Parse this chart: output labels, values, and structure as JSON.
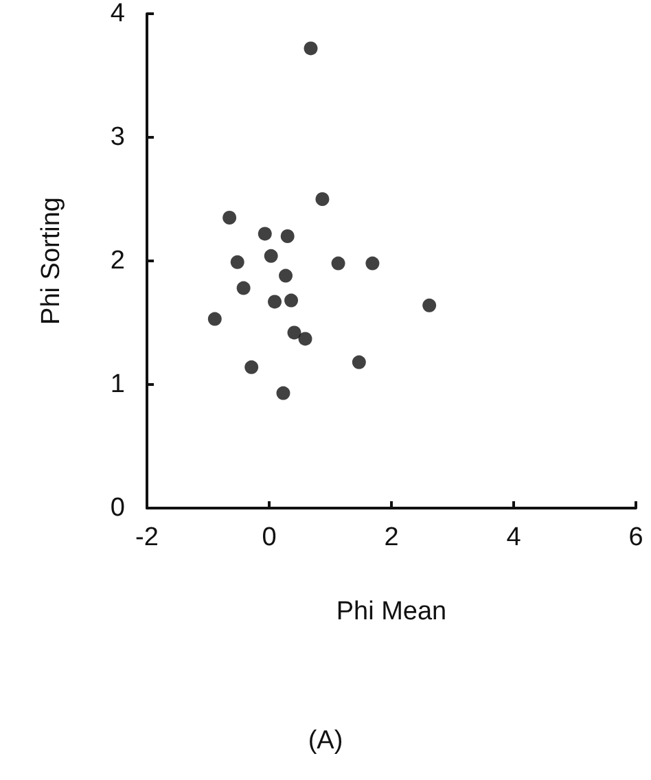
{
  "chart_data": {
    "type": "scatter",
    "xlabel": "Phi Mean",
    "ylabel": "Phi Sorting",
    "annotations": [
      "(A)"
    ],
    "x": [
      0.68,
      0.87,
      -0.65,
      -0.07,
      0.3,
      0.03,
      -0.52,
      1.13,
      1.69,
      0.27,
      -0.42,
      0.09,
      0.36,
      2.62,
      -0.89,
      0.41,
      0.59,
      -0.29,
      1.47,
      0.23
    ],
    "values": [
      3.72,
      2.5,
      2.35,
      2.22,
      2.2,
      2.04,
      1.99,
      1.98,
      1.98,
      1.88,
      1.78,
      1.67,
      1.68,
      1.64,
      1.53,
      1.42,
      1.37,
      1.14,
      1.18,
      0.93
    ],
    "color": "#111111",
    "marker": "circle",
    "xlim": [
      -2,
      6
    ],
    "xticks": [
      -2,
      0,
      2,
      4,
      6
    ],
    "ylim": [
      0,
      4
    ],
    "yticks": [
      0,
      1,
      2,
      3,
      4
    ],
    "grid": false
  }
}
